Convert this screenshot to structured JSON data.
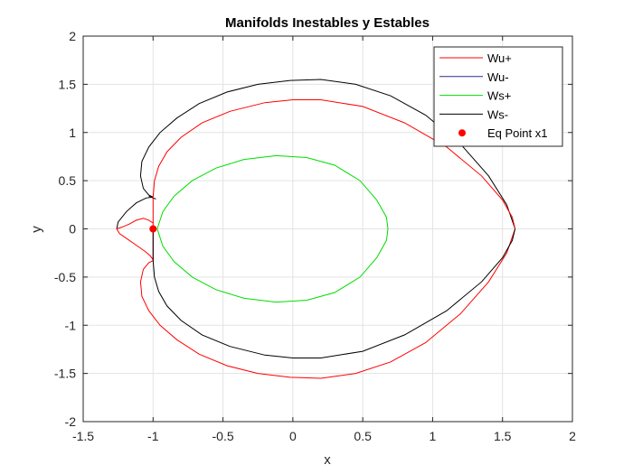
{
  "chart_data": {
    "type": "line",
    "title": "Manifolds Inestables y Estables",
    "xlabel": "x",
    "ylabel": "y",
    "xlim": [
      -1.5,
      2
    ],
    "ylim": [
      -2,
      2
    ],
    "x_ticks": [
      -1.5,
      -1,
      -0.5,
      0,
      0.5,
      1,
      1.5,
      2
    ],
    "y_ticks": [
      -2,
      -1.5,
      -1,
      -0.5,
      0,
      0.5,
      1,
      1.5,
      2
    ],
    "x_tick_labels": [
      "-1.5",
      "-1",
      "-0.5",
      "0",
      "0.5",
      "1",
      "1.5",
      "2"
    ],
    "y_tick_labels": [
      "-2",
      "-1.5",
      "-1",
      "-0.5",
      "0",
      "0.5",
      "1",
      "1.5",
      "2"
    ],
    "grid": true,
    "legend_position": "top-right",
    "series": [
      {
        "name": "Wu+",
        "color": "#ff0000",
        "x": [
          -1.0,
          -1.0,
          -1.03,
          -1.07,
          -1.12,
          -1.17,
          -1.22,
          -1.26,
          -1.24,
          -1.18,
          -1.12,
          -1.06,
          -1.02,
          -1.0,
          -1.0,
          -0.99,
          -0.96,
          -0.9,
          -0.8,
          -0.65,
          -0.45,
          -0.2,
          0.0,
          0.2,
          0.5,
          0.8,
          1.1,
          1.35,
          1.5,
          1.57,
          1.59
        ],
        "y": [
          0.0,
          0.06,
          0.09,
          0.11,
          0.09,
          0.05,
          0.02,
          0.0,
          -0.05,
          -0.11,
          -0.17,
          -0.23,
          -0.28,
          -0.32,
          0.33,
          0.5,
          0.65,
          0.8,
          0.95,
          1.1,
          1.22,
          1.31,
          1.34,
          1.34,
          1.27,
          1.1,
          0.85,
          0.55,
          0.3,
          0.12,
          0.0
        ]
      },
      {
        "name": "Wu-",
        "color": "#2a2a8c",
        "x": [],
        "y": []
      },
      {
        "name": "Ws+",
        "color": "#00dd00",
        "x": [
          -0.97,
          -0.93,
          -0.85,
          -0.72,
          -0.55,
          -0.35,
          -0.12,
          0.1,
          0.3,
          0.48,
          0.6,
          0.67,
          0.68,
          0.67,
          0.6,
          0.48,
          0.3,
          0.1,
          -0.12,
          -0.35,
          -0.55,
          -0.72,
          -0.85,
          -0.93,
          -0.97
        ],
        "y": [
          0.0,
          0.18,
          0.34,
          0.5,
          0.63,
          0.72,
          0.76,
          0.74,
          0.66,
          0.5,
          0.3,
          0.12,
          0.0,
          -0.12,
          -0.3,
          -0.5,
          -0.66,
          -0.74,
          -0.76,
          -0.72,
          -0.63,
          -0.5,
          -0.34,
          -0.18,
          0.0
        ]
      },
      {
        "name": "Ws-",
        "color": "#000000",
        "x": [
          -1.0,
          -1.0,
          -0.99,
          -0.96,
          -0.9,
          -0.8,
          -0.65,
          -0.45,
          -0.2,
          0.0,
          0.2,
          0.5,
          0.8,
          1.1,
          1.35,
          1.5,
          1.57,
          1.59
        ],
        "y": [
          0.0,
          -0.33,
          -0.5,
          -0.65,
          -0.8,
          -0.95,
          -1.1,
          -1.22,
          -1.31,
          -1.34,
          -1.34,
          -1.27,
          -1.1,
          -0.85,
          -0.55,
          -0.3,
          -0.12,
          0.0
        ]
      },
      {
        "name": "Eq Point x1",
        "color": "#ff0000",
        "marker": "filled-circle",
        "x": [
          -1.0
        ],
        "y": [
          0.0
        ]
      }
    ],
    "extra_curves": [
      {
        "color": "#ff0000",
        "x": [
          -1.0,
          -1.03,
          -1.07,
          -1.09,
          -1.08,
          -1.03,
          -0.95,
          -0.83,
          -0.67,
          -0.47,
          -0.25,
          -0.02,
          0.2,
          0.45,
          0.7,
          0.95,
          1.2,
          1.4,
          1.53,
          1.59
        ],
        "y": [
          -0.33,
          -0.35,
          -0.42,
          -0.55,
          -0.7,
          -0.85,
          -1.0,
          -1.15,
          -1.3,
          -1.42,
          -1.5,
          -1.54,
          -1.55,
          -1.5,
          -1.38,
          -1.18,
          -0.88,
          -0.55,
          -0.25,
          0.0
        ]
      },
      {
        "color": "#000000",
        "x": [
          -1.0,
          -1.03,
          -1.07,
          -1.09,
          -1.08,
          -1.03,
          -0.95,
          -0.83,
          -0.67,
          -0.47,
          -0.25,
          -0.02,
          0.2,
          0.45,
          0.7,
          0.95,
          1.2,
          1.4,
          1.53,
          1.59
        ],
        "y": [
          0.33,
          0.35,
          0.42,
          0.55,
          0.7,
          0.85,
          1.0,
          1.15,
          1.3,
          1.42,
          1.5,
          1.54,
          1.55,
          1.5,
          1.38,
          1.18,
          0.88,
          0.55,
          0.25,
          0.0
        ]
      },
      {
        "color": "#000000",
        "x": [
          -1.0,
          -1.05,
          -1.12,
          -1.19,
          -1.25,
          -1.26
        ],
        "y": [
          0.33,
          0.32,
          0.27,
          0.18,
          0.07,
          0.0
        ]
      },
      {
        "color": "#000000",
        "x": [
          -1.03,
          -1.0,
          -0.98
        ],
        "y": [
          0.34,
          0.32,
          0.31
        ]
      }
    ]
  }
}
